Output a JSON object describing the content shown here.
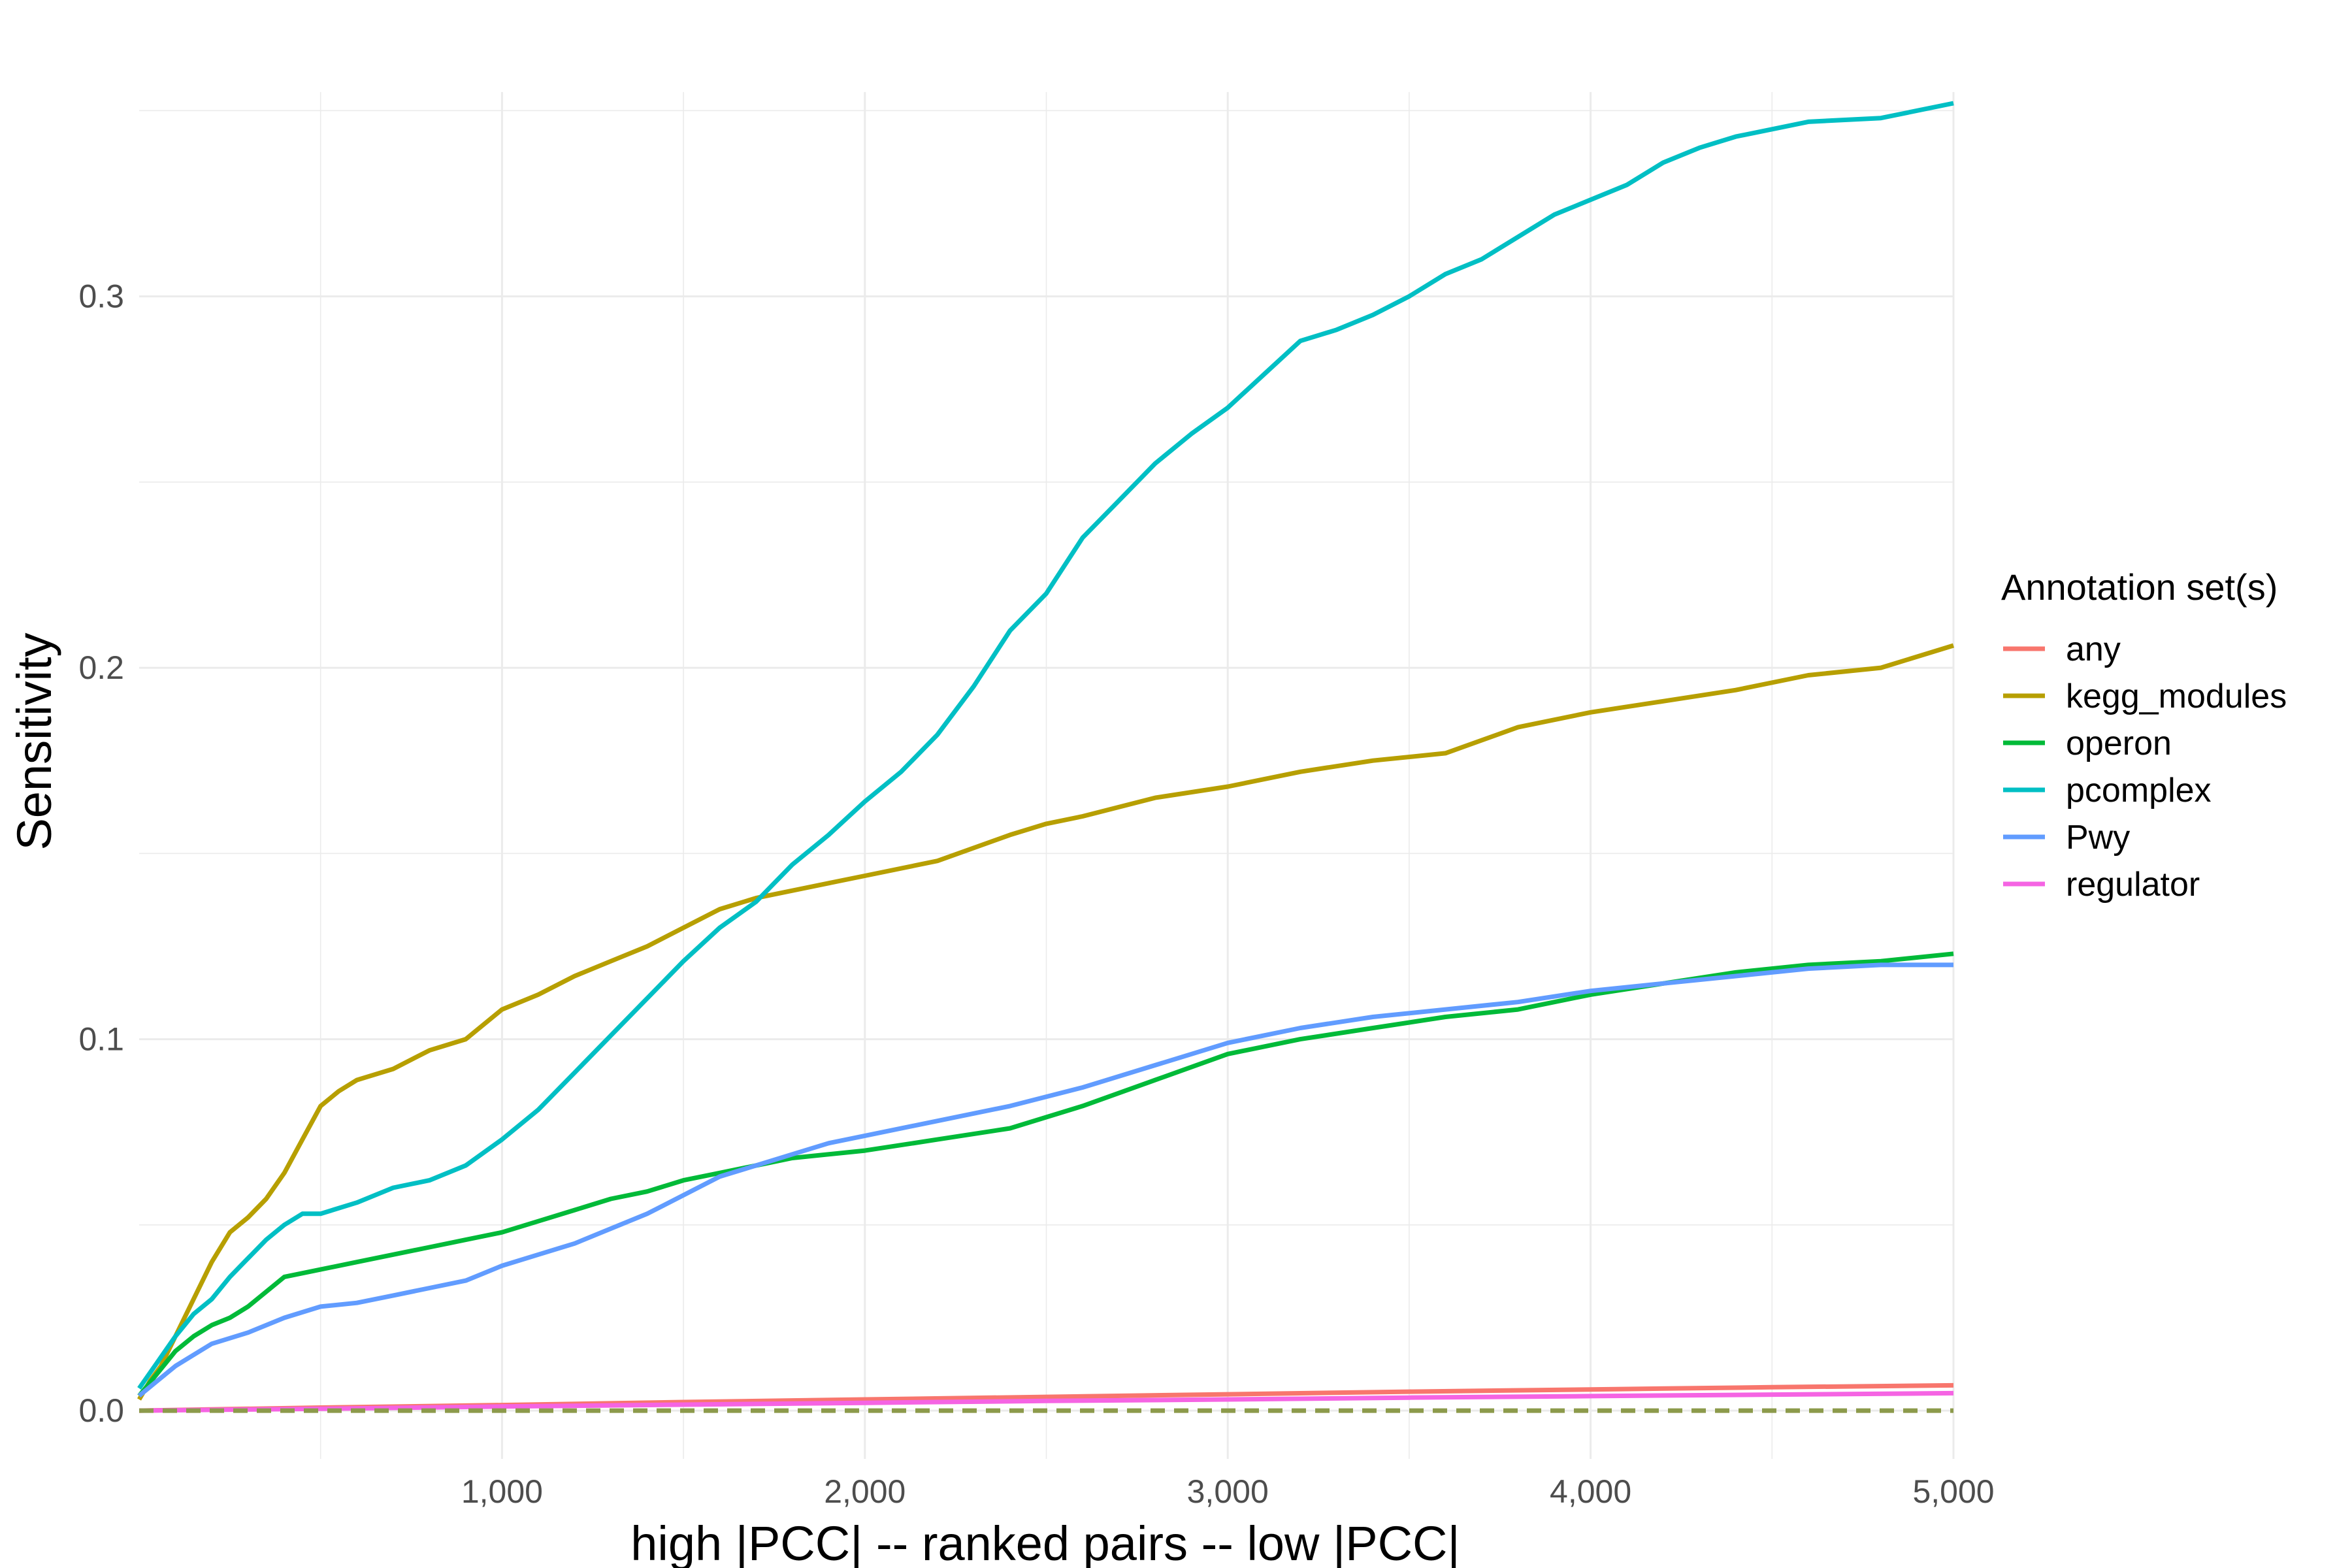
{
  "chart_data": {
    "type": "line",
    "title": "",
    "xlabel": "high |PCC| -- ranked pairs -- low |PCC|",
    "ylabel": "Sensitivity",
    "xlim": [
      0,
      5000
    ],
    "ylim": [
      -0.013,
      0.355
    ],
    "x_ticks": [
      1000,
      2000,
      3000,
      4000,
      5000
    ],
    "x_tick_labels": [
      "1,000",
      "2,000",
      "3,000",
      "4,000",
      "5,000"
    ],
    "y_ticks": [
      0.0,
      0.1,
      0.2,
      0.3
    ],
    "y_tick_labels": [
      "0.0",
      "0.1",
      "0.2",
      "0.3"
    ],
    "grid": true,
    "legend": {
      "title": "Annotation set(s)",
      "position": "right"
    },
    "series": [
      {
        "name": "any",
        "color": "#F8766D",
        "dashed": false,
        "points": [
          [
            0,
            0
          ],
          [
            500,
            0.0008
          ],
          [
            1000,
            0.0015
          ],
          [
            1500,
            0.0023
          ],
          [
            2000,
            0.003
          ],
          [
            2500,
            0.0037
          ],
          [
            3000,
            0.0044
          ],
          [
            3500,
            0.0051
          ],
          [
            4000,
            0.0057
          ],
          [
            4500,
            0.0063
          ],
          [
            5000,
            0.0068
          ]
        ]
      },
      {
        "name": "kegg_modules",
        "color": "#B79F00",
        "dashed": false,
        "points": [
          [
            0,
            0.003
          ],
          [
            30,
            0.008
          ],
          [
            60,
            0.012
          ],
          [
            100,
            0.02
          ],
          [
            150,
            0.03
          ],
          [
            200,
            0.04
          ],
          [
            250,
            0.048
          ],
          [
            300,
            0.052
          ],
          [
            350,
            0.057
          ],
          [
            400,
            0.064
          ],
          [
            450,
            0.073
          ],
          [
            500,
            0.082
          ],
          [
            550,
            0.086
          ],
          [
            600,
            0.089
          ],
          [
            700,
            0.092
          ],
          [
            800,
            0.097
          ],
          [
            900,
            0.1
          ],
          [
            1000,
            0.108
          ],
          [
            1100,
            0.112
          ],
          [
            1200,
            0.117
          ],
          [
            1300,
            0.121
          ],
          [
            1400,
            0.125
          ],
          [
            1500,
            0.13
          ],
          [
            1600,
            0.135
          ],
          [
            1700,
            0.138
          ],
          [
            1800,
            0.14
          ],
          [
            1900,
            0.142
          ],
          [
            2000,
            0.144
          ],
          [
            2200,
            0.148
          ],
          [
            2400,
            0.155
          ],
          [
            2500,
            0.158
          ],
          [
            2600,
            0.16
          ],
          [
            2800,
            0.165
          ],
          [
            3000,
            0.168
          ],
          [
            3200,
            0.172
          ],
          [
            3400,
            0.175
          ],
          [
            3600,
            0.177
          ],
          [
            3800,
            0.184
          ],
          [
            4000,
            0.188
          ],
          [
            4200,
            0.191
          ],
          [
            4400,
            0.194
          ],
          [
            4600,
            0.198
          ],
          [
            4800,
            0.2
          ],
          [
            5000,
            0.206
          ]
        ]
      },
      {
        "name": "operon",
        "color": "#00BA38",
        "dashed": false,
        "points": [
          [
            0,
            0.004
          ],
          [
            50,
            0.01
          ],
          [
            100,
            0.016
          ],
          [
            150,
            0.02
          ],
          [
            200,
            0.023
          ],
          [
            250,
            0.025
          ],
          [
            300,
            0.028
          ],
          [
            350,
            0.032
          ],
          [
            400,
            0.036
          ],
          [
            500,
            0.038
          ],
          [
            600,
            0.04
          ],
          [
            700,
            0.042
          ],
          [
            800,
            0.044
          ],
          [
            900,
            0.046
          ],
          [
            1000,
            0.048
          ],
          [
            1100,
            0.051
          ],
          [
            1200,
            0.054
          ],
          [
            1300,
            0.057
          ],
          [
            1400,
            0.059
          ],
          [
            1500,
            0.062
          ],
          [
            1600,
            0.064
          ],
          [
            1700,
            0.066
          ],
          [
            1800,
            0.068
          ],
          [
            2000,
            0.07
          ],
          [
            2200,
            0.073
          ],
          [
            2400,
            0.076
          ],
          [
            2600,
            0.082
          ],
          [
            2800,
            0.089
          ],
          [
            3000,
            0.096
          ],
          [
            3200,
            0.1
          ],
          [
            3400,
            0.103
          ],
          [
            3600,
            0.106
          ],
          [
            3800,
            0.108
          ],
          [
            4000,
            0.112
          ],
          [
            4200,
            0.115
          ],
          [
            4400,
            0.118
          ],
          [
            4600,
            0.12
          ],
          [
            4800,
            0.121
          ],
          [
            5000,
            0.123
          ]
        ]
      },
      {
        "name": "pcomplex",
        "color": "#00BFC4",
        "dashed": false,
        "points": [
          [
            0,
            0.006
          ],
          [
            50,
            0.013
          ],
          [
            100,
            0.02
          ],
          [
            150,
            0.026
          ],
          [
            200,
            0.03
          ],
          [
            250,
            0.036
          ],
          [
            300,
            0.041
          ],
          [
            350,
            0.046
          ],
          [
            400,
            0.05
          ],
          [
            450,
            0.053
          ],
          [
            500,
            0.053
          ],
          [
            600,
            0.056
          ],
          [
            700,
            0.06
          ],
          [
            800,
            0.062
          ],
          [
            900,
            0.066
          ],
          [
            1000,
            0.073
          ],
          [
            1100,
            0.081
          ],
          [
            1200,
            0.091
          ],
          [
            1300,
            0.101
          ],
          [
            1400,
            0.111
          ],
          [
            1500,
            0.121
          ],
          [
            1600,
            0.13
          ],
          [
            1700,
            0.137
          ],
          [
            1800,
            0.147
          ],
          [
            1900,
            0.155
          ],
          [
            2000,
            0.164
          ],
          [
            2100,
            0.172
          ],
          [
            2200,
            0.182
          ],
          [
            2300,
            0.195
          ],
          [
            2400,
            0.21
          ],
          [
            2500,
            0.22
          ],
          [
            2600,
            0.235
          ],
          [
            2700,
            0.245
          ],
          [
            2800,
            0.255
          ],
          [
            2900,
            0.263
          ],
          [
            3000,
            0.27
          ],
          [
            3100,
            0.279
          ],
          [
            3200,
            0.288
          ],
          [
            3300,
            0.291
          ],
          [
            3400,
            0.295
          ],
          [
            3500,
            0.3
          ],
          [
            3600,
            0.306
          ],
          [
            3700,
            0.31
          ],
          [
            3800,
            0.316
          ],
          [
            3900,
            0.322
          ],
          [
            4000,
            0.326
          ],
          [
            4100,
            0.33
          ],
          [
            4200,
            0.336
          ],
          [
            4300,
            0.34
          ],
          [
            4400,
            0.343
          ],
          [
            4500,
            0.345
          ],
          [
            4600,
            0.347
          ],
          [
            4800,
            0.348
          ],
          [
            5000,
            0.352
          ]
        ]
      },
      {
        "name": "Pwy",
        "color": "#619CFF",
        "dashed": false,
        "points": [
          [
            0,
            0.004
          ],
          [
            50,
            0.008
          ],
          [
            100,
            0.012
          ],
          [
            150,
            0.015
          ],
          [
            200,
            0.018
          ],
          [
            300,
            0.021
          ],
          [
            400,
            0.025
          ],
          [
            500,
            0.028
          ],
          [
            600,
            0.029
          ],
          [
            700,
            0.031
          ],
          [
            800,
            0.033
          ],
          [
            900,
            0.035
          ],
          [
            1000,
            0.039
          ],
          [
            1100,
            0.042
          ],
          [
            1200,
            0.045
          ],
          [
            1300,
            0.049
          ],
          [
            1400,
            0.053
          ],
          [
            1500,
            0.058
          ],
          [
            1600,
            0.063
          ],
          [
            1700,
            0.066
          ],
          [
            1800,
            0.069
          ],
          [
            1900,
            0.072
          ],
          [
            2000,
            0.074
          ],
          [
            2200,
            0.078
          ],
          [
            2400,
            0.082
          ],
          [
            2600,
            0.087
          ],
          [
            2800,
            0.093
          ],
          [
            3000,
            0.099
          ],
          [
            3200,
            0.103
          ],
          [
            3400,
            0.106
          ],
          [
            3600,
            0.108
          ],
          [
            3800,
            0.11
          ],
          [
            4000,
            0.113
          ],
          [
            4200,
            0.115
          ],
          [
            4400,
            0.117
          ],
          [
            4600,
            0.119
          ],
          [
            4800,
            0.12
          ],
          [
            5000,
            0.12
          ]
        ]
      },
      {
        "name": "regulator",
        "color": "#F564E3",
        "dashed": false,
        "points": [
          [
            0,
            0
          ],
          [
            500,
            0.0005
          ],
          [
            1000,
            0.0011
          ],
          [
            1500,
            0.0016
          ],
          [
            2000,
            0.0021
          ],
          [
            2500,
            0.0026
          ],
          [
            3000,
            0.003
          ],
          [
            3500,
            0.0035
          ],
          [
            4000,
            0.0039
          ],
          [
            4500,
            0.0043
          ],
          [
            5000,
            0.0047
          ]
        ]
      },
      {
        "name": "baseline",
        "color": "#8C9A4B",
        "dashed": true,
        "in_legend": false,
        "points": [
          [
            0,
            0
          ],
          [
            5000,
            0
          ]
        ]
      }
    ]
  }
}
